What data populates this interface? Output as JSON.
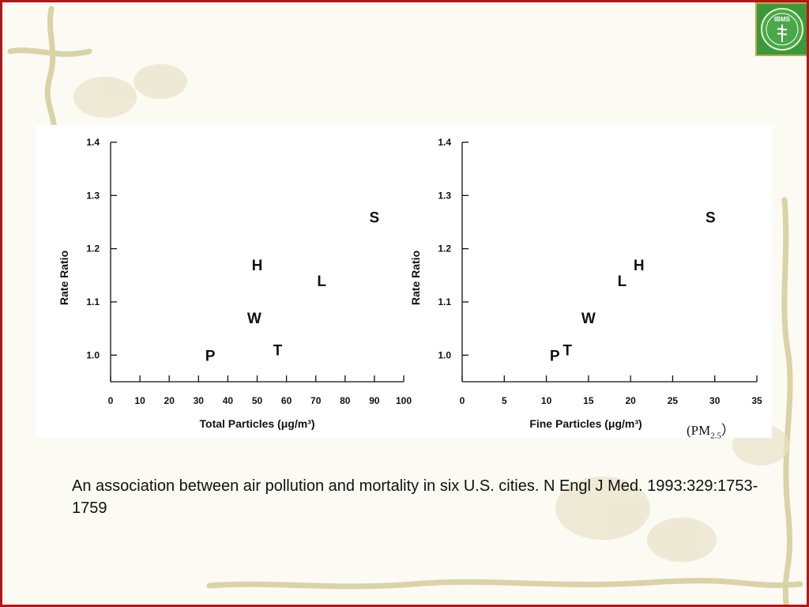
{
  "slide": {
    "logo_text": "IBMS",
    "pm_note": "(PM",
    "pm_sub": "2.5",
    "pm_close": "）",
    "citation": "An association between air pollution and mortality in six U.S. cities. N Engl J Med. 1993:329:1753-1759"
  },
  "colors": {
    "border": "#b01818",
    "background": "#fbfaf3",
    "vine": "#d7d0a0",
    "logo_green": "#3a9a3a",
    "logo_gold": "#c2a74a"
  },
  "chart_data": [
    {
      "type": "scatter",
      "xlabel": "Total Particles (μg/m³)",
      "ylabel": "Rate Ratio",
      "xlim": [
        0,
        100
      ],
      "ylim": [
        0.95,
        1.4
      ],
      "xticks": [
        0,
        10,
        20,
        30,
        40,
        50,
        60,
        70,
        80,
        90,
        100
      ],
      "yticks": [
        1.0,
        1.1,
        1.2,
        1.3,
        1.4
      ],
      "grid": false,
      "points": [
        {
          "label": "P",
          "x": 34,
          "y": 1.0
        },
        {
          "label": "T",
          "x": 57,
          "y": 1.01
        },
        {
          "label": "W",
          "x": 49,
          "y": 1.07
        },
        {
          "label": "L",
          "x": 72,
          "y": 1.14
        },
        {
          "label": "H",
          "x": 50,
          "y": 1.17
        },
        {
          "label": "S",
          "x": 90,
          "y": 1.26
        }
      ]
    },
    {
      "type": "scatter",
      "xlabel": "Fine Particles (μg/m³)",
      "ylabel": "Rate Ratio",
      "xlim": [
        0,
        35
      ],
      "ylim": [
        0.95,
        1.4
      ],
      "xticks": [
        0,
        5,
        10,
        15,
        20,
        25,
        30,
        35
      ],
      "yticks": [
        1.0,
        1.1,
        1.2,
        1.3,
        1.4
      ],
      "grid": false,
      "points": [
        {
          "label": "P",
          "x": 11,
          "y": 1.0
        },
        {
          "label": "T",
          "x": 12.5,
          "y": 1.01
        },
        {
          "label": "W",
          "x": 15,
          "y": 1.07
        },
        {
          "label": "L",
          "x": 19,
          "y": 1.14
        },
        {
          "label": "H",
          "x": 21,
          "y": 1.17
        },
        {
          "label": "S",
          "x": 29.5,
          "y": 1.26
        }
      ]
    }
  ]
}
